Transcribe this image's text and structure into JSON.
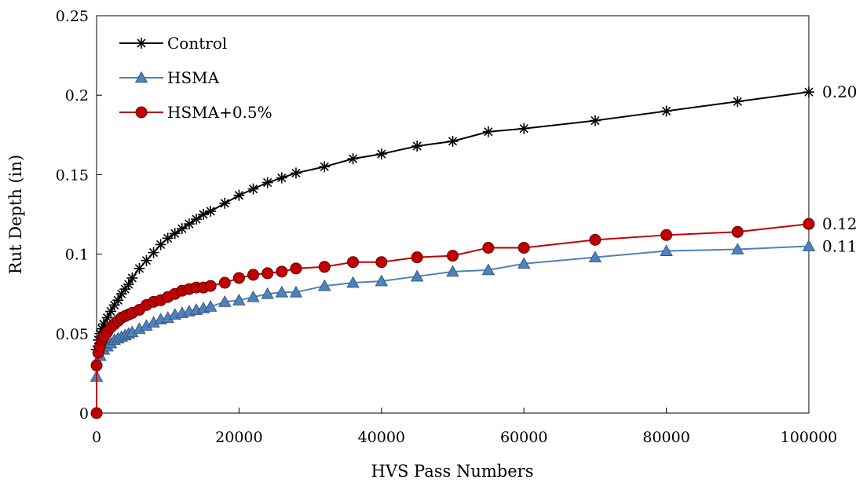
{
  "chart_data": {
    "type": "line",
    "xlabel": "HVS Pass Numbers",
    "ylabel": "Rut Depth (in)",
    "xlim": [
      0,
      100000
    ],
    "ylim": [
      0,
      0.25
    ],
    "xticks": [
      "0",
      "20000",
      "40000",
      "60000",
      "80000",
      "100000"
    ],
    "yticks": [
      "0",
      "0.05",
      "0.1",
      "0.15",
      "0.2",
      "0.25"
    ],
    "grid": false,
    "legend_position": "top-left",
    "series": [
      {
        "name": "Control",
        "color": "#000000",
        "marker": "asterisk",
        "x": [
          0,
          250,
          500,
          750,
          1000,
          1500,
          2000,
          2500,
          3000,
          3500,
          4000,
          4500,
          5000,
          6000,
          7000,
          8000,
          9000,
          10000,
          11000,
          12000,
          13000,
          14000,
          15000,
          16000,
          18000,
          20000,
          22000,
          24000,
          26000,
          28000,
          32000,
          36000,
          40000,
          45000,
          50000,
          55000,
          60000,
          70000,
          80000,
          90000,
          100000
        ],
        "values": [
          0.04,
          0.046,
          0.05,
          0.053,
          0.056,
          0.06,
          0.064,
          0.068,
          0.071,
          0.075,
          0.078,
          0.081,
          0.085,
          0.091,
          0.096,
          0.101,
          0.106,
          0.11,
          0.113,
          0.116,
          0.119,
          0.122,
          0.125,
          0.127,
          0.132,
          0.137,
          0.141,
          0.145,
          0.148,
          0.151,
          0.155,
          0.16,
          0.163,
          0.168,
          0.171,
          0.177,
          0.179,
          0.184,
          0.19,
          0.196,
          0.202
        ]
      },
      {
        "name": "HSMA",
        "color": "#4f81bd",
        "marker": "triangle",
        "x": [
          0,
          500,
          1000,
          1500,
          2000,
          2500,
          3000,
          3500,
          4000,
          4500,
          5000,
          6000,
          7000,
          8000,
          9000,
          10000,
          11000,
          12000,
          13000,
          14000,
          15000,
          16000,
          18000,
          20000,
          22000,
          24000,
          26000,
          28000,
          32000,
          36000,
          40000,
          45000,
          50000,
          55000,
          60000,
          70000,
          80000,
          90000,
          100000
        ],
        "values": [
          0.023,
          0.036,
          0.04,
          0.042,
          0.044,
          0.046,
          0.047,
          0.048,
          0.049,
          0.05,
          0.051,
          0.053,
          0.055,
          0.057,
          0.059,
          0.06,
          0.062,
          0.063,
          0.064,
          0.065,
          0.066,
          0.067,
          0.07,
          0.071,
          0.073,
          0.075,
          0.076,
          0.076,
          0.08,
          0.082,
          0.083,
          0.086,
          0.089,
          0.09,
          0.094,
          0.098,
          0.102,
          0.103,
          0.105
        ]
      },
      {
        "name": "HSMA+0.5%",
        "color": "#c00000",
        "marker": "circle",
        "x": [
          0,
          0,
          250,
          500,
          750,
          1000,
          1500,
          2000,
          2500,
          3000,
          3500,
          4000,
          4500,
          5000,
          6000,
          7000,
          8000,
          9000,
          10000,
          11000,
          12000,
          13000,
          14000,
          15000,
          16000,
          18000,
          20000,
          22000,
          24000,
          26000,
          28000,
          32000,
          36000,
          40000,
          45000,
          50000,
          55000,
          60000,
          70000,
          80000,
          90000,
          100000
        ],
        "values": [
          0.0,
          0.03,
          0.038,
          0.042,
          0.046,
          0.048,
          0.051,
          0.054,
          0.056,
          0.058,
          0.06,
          0.061,
          0.062,
          0.063,
          0.065,
          0.068,
          0.07,
          0.071,
          0.073,
          0.075,
          0.077,
          0.078,
          0.079,
          0.079,
          0.08,
          0.082,
          0.085,
          0.087,
          0.088,
          0.089,
          0.091,
          0.092,
          0.095,
          0.095,
          0.098,
          0.099,
          0.104,
          0.104,
          0.109,
          0.112,
          0.114,
          0.119
        ]
      }
    ],
    "end_labels": [
      {
        "text": "0.20",
        "value": 0.202
      },
      {
        "text": "0.12",
        "value": 0.119
      },
      {
        "text": "0.11",
        "value": 0.105
      }
    ]
  }
}
